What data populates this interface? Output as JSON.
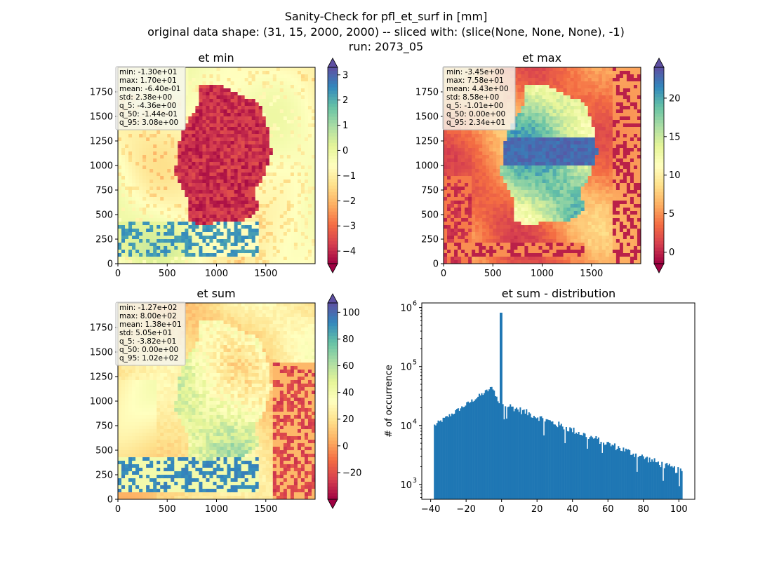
{
  "figure": {
    "title_lines": [
      "Sanity-Check for pfl_et_surf in [mm]",
      "original data shape: (31, 15, 2000, 2000) -- sliced with: (slice(None, None, None), -1)",
      "run: 2073_05"
    ]
  },
  "chart_data": [
    {
      "type": "heatmap",
      "title": "et min",
      "xlim": [
        0,
        2000
      ],
      "ylim": [
        0,
        2000
      ],
      "x_ticks": [
        "0",
        "500",
        "1000",
        "1500"
      ],
      "y_ticks": [
        "0",
        "250",
        "500",
        "750",
        "1000",
        "1250",
        "1500",
        "1750"
      ],
      "colormap": "Spectral",
      "color_range": [
        -4.5,
        3.3
      ],
      "colorbar_ticks": [
        "3",
        "2",
        "1",
        "0",
        "−1",
        "−2",
        "−3",
        "−4"
      ],
      "colorbar_tick_values": [
        3,
        2,
        1,
        0,
        -1,
        -2,
        -3,
        -4
      ],
      "stats": [
        "min: -1.30e+01",
        "max: 1.70e+01",
        "mean: -6.40e-01",
        "std: 2.38e+00",
        "q_5: -4.36e+00",
        "q_50: -1.44e-01",
        "q_95: 3.08e+00"
      ]
    },
    {
      "type": "heatmap",
      "title": "et max",
      "xlim": [
        0,
        2000
      ],
      "ylim": [
        0,
        2000
      ],
      "x_ticks": [
        "0",
        "500",
        "1000",
        "1500"
      ],
      "y_ticks": [
        "0",
        "250",
        "500",
        "750",
        "1000",
        "1250",
        "1500",
        "1750"
      ],
      "colormap": "Spectral",
      "color_range": [
        -1.5,
        24
      ],
      "colorbar_ticks": [
        "20",
        "15",
        "10",
        "5",
        "0"
      ],
      "colorbar_tick_values": [
        20,
        15,
        10,
        5,
        0
      ],
      "stats": [
        "min: -3.45e+00",
        "max: 7.58e+01",
        "mean: 4.43e+00",
        "std: 8.58e+00",
        "q_5: -1.01e+00",
        "q_50: 0.00e+00",
        "q_95: 2.34e+01"
      ]
    },
    {
      "type": "heatmap",
      "title": "et sum",
      "xlim": [
        0,
        2000
      ],
      "ylim": [
        0,
        2000
      ],
      "x_ticks": [
        "0",
        "500",
        "1000",
        "1500"
      ],
      "y_ticks": [
        "0",
        "250",
        "500",
        "750",
        "1000",
        "1250",
        "1500",
        "1750"
      ],
      "colormap": "Spectral",
      "color_range": [
        -40,
        107
      ],
      "colorbar_ticks": [
        "100",
        "80",
        "60",
        "40",
        "20",
        "0",
        "−20"
      ],
      "colorbar_tick_values": [
        100,
        80,
        60,
        40,
        20,
        0,
        -20
      ],
      "stats": [
        "min: -1.27e+02",
        "max: 8.00e+02",
        "mean: 1.38e+01",
        "std: 5.05e+01",
        "q_5: -3.82e+01",
        "q_50: 0.00e+00",
        "q_95: 1.02e+02"
      ]
    },
    {
      "type": "bar",
      "title": "et sum - distribution",
      "ylabel": "# of occurrence",
      "y_scale": "log",
      "xlim": [
        -45,
        109
      ],
      "ylim": [
        560,
        1200000
      ],
      "x_ticks": [
        "−40",
        "−20",
        "0",
        "20",
        "40",
        "60",
        "80",
        "100"
      ],
      "x_tick_values": [
        -40,
        -20,
        0,
        20,
        40,
        60,
        80,
        100
      ],
      "y_ticks": [
        "10",
        "10",
        "10",
        "10"
      ],
      "y_tick_exponents": [
        "3",
        "4",
        "5",
        "6"
      ],
      "y_tick_values": [
        1000,
        10000,
        100000,
        1000000
      ],
      "bin_range": [
        -38.2,
        102
      ],
      "peak_value": 820000,
      "color": "#1f77b4"
    }
  ]
}
